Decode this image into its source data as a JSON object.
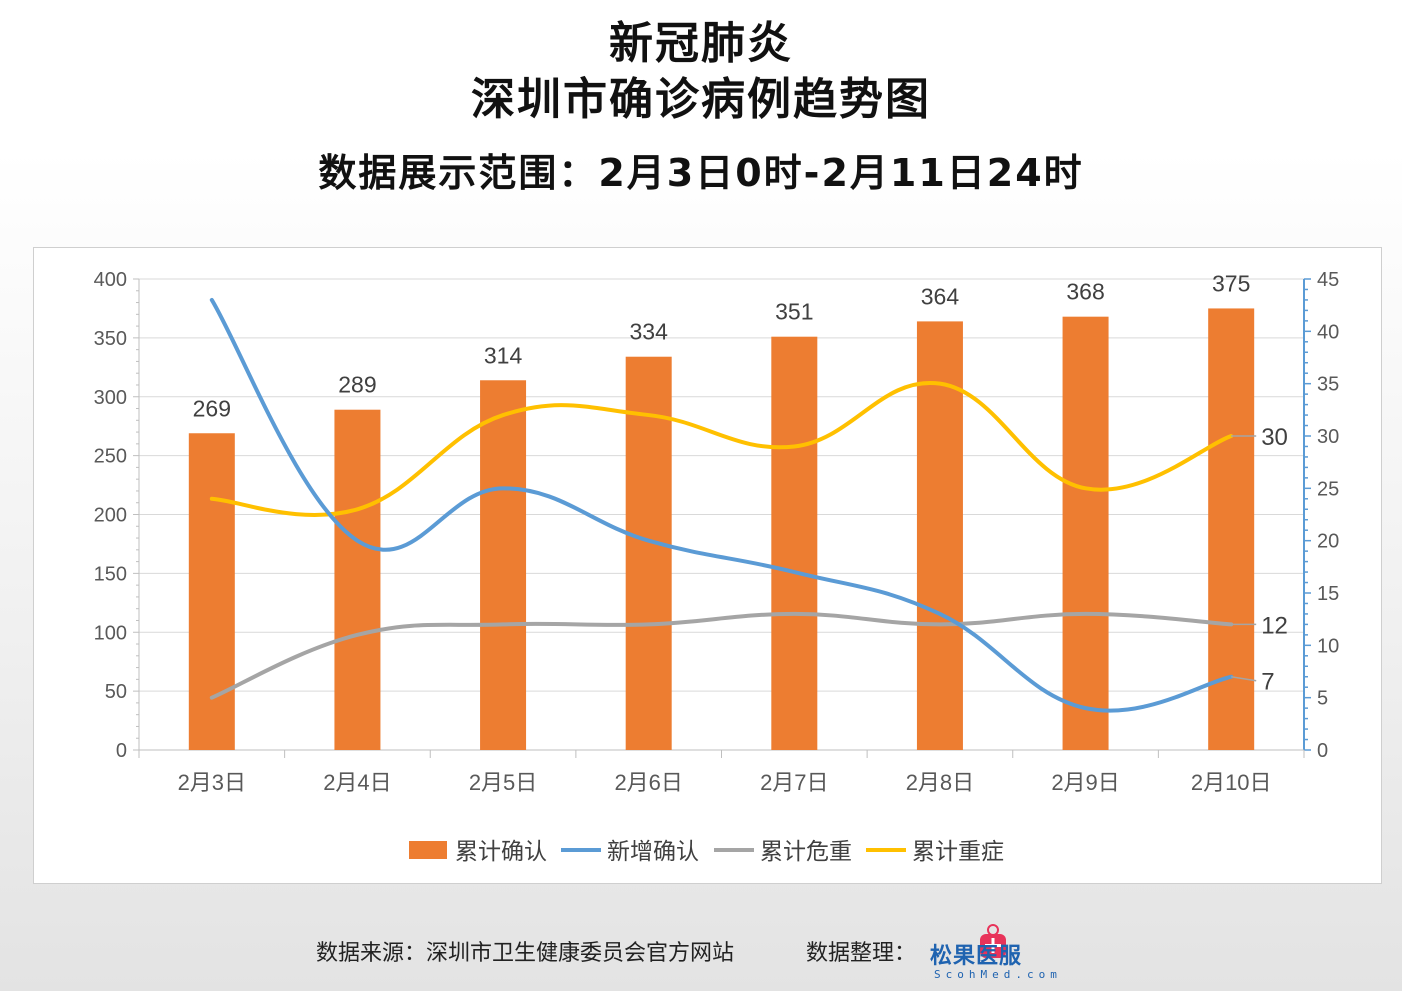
{
  "header": {
    "line1": "新冠肺炎",
    "line2": "深圳市确诊病例趋势图",
    "line3": "数据展示范围：2月3日0时-2月11日24时"
  },
  "footer": {
    "source": "数据来源：深圳市卫生健康委员会官方网站",
    "organizer_label": "数据整理：",
    "logo_name": "松果医服",
    "logo_sub": "ScohMed.com"
  },
  "colors": {
    "bar": "#ed7d31",
    "new_confirmed": "#5b9bd5",
    "critical": "#a5a5a5",
    "severe": "#ffc000",
    "grid": "#d9d9d9",
    "axis_left": "#bfbfbf",
    "axis_right": "#5b9bd5"
  },
  "chart_data": {
    "type": "bar",
    "title": "",
    "categories": [
      "2月3日",
      "2月4日",
      "2月5日",
      "2月6日",
      "2月7日",
      "2月8日",
      "2月9日",
      "2月10日"
    ],
    "y_left": {
      "range": [
        0,
        400
      ],
      "ticks": [
        0,
        50,
        100,
        150,
        200,
        250,
        300,
        350,
        400
      ]
    },
    "y_right": {
      "range": [
        0,
        45
      ],
      "ticks": [
        0,
        5,
        10,
        15,
        20,
        25,
        30,
        35,
        40,
        45
      ]
    },
    "grid": true,
    "legend_position": "bottom",
    "series": [
      {
        "name": "累计确认",
        "type": "bar",
        "axis": "left",
        "values": [
          269,
          289,
          314,
          334,
          351,
          364,
          368,
          375
        ],
        "data_labels": true
      },
      {
        "name": "新增确认",
        "type": "line",
        "axis": "right",
        "values": [
          43,
          20,
          25,
          20,
          17,
          13,
          4,
          7
        ],
        "end_label": "7"
      },
      {
        "name": "累计危重",
        "type": "line",
        "axis": "right",
        "values": [
          5,
          11,
          12,
          12,
          13,
          12,
          13,
          12
        ],
        "end_label": "12"
      },
      {
        "name": "累计重症",
        "type": "line",
        "axis": "right",
        "values": [
          24,
          23,
          32,
          32,
          29,
          35,
          25,
          30
        ],
        "end_label": "30"
      }
    ]
  }
}
